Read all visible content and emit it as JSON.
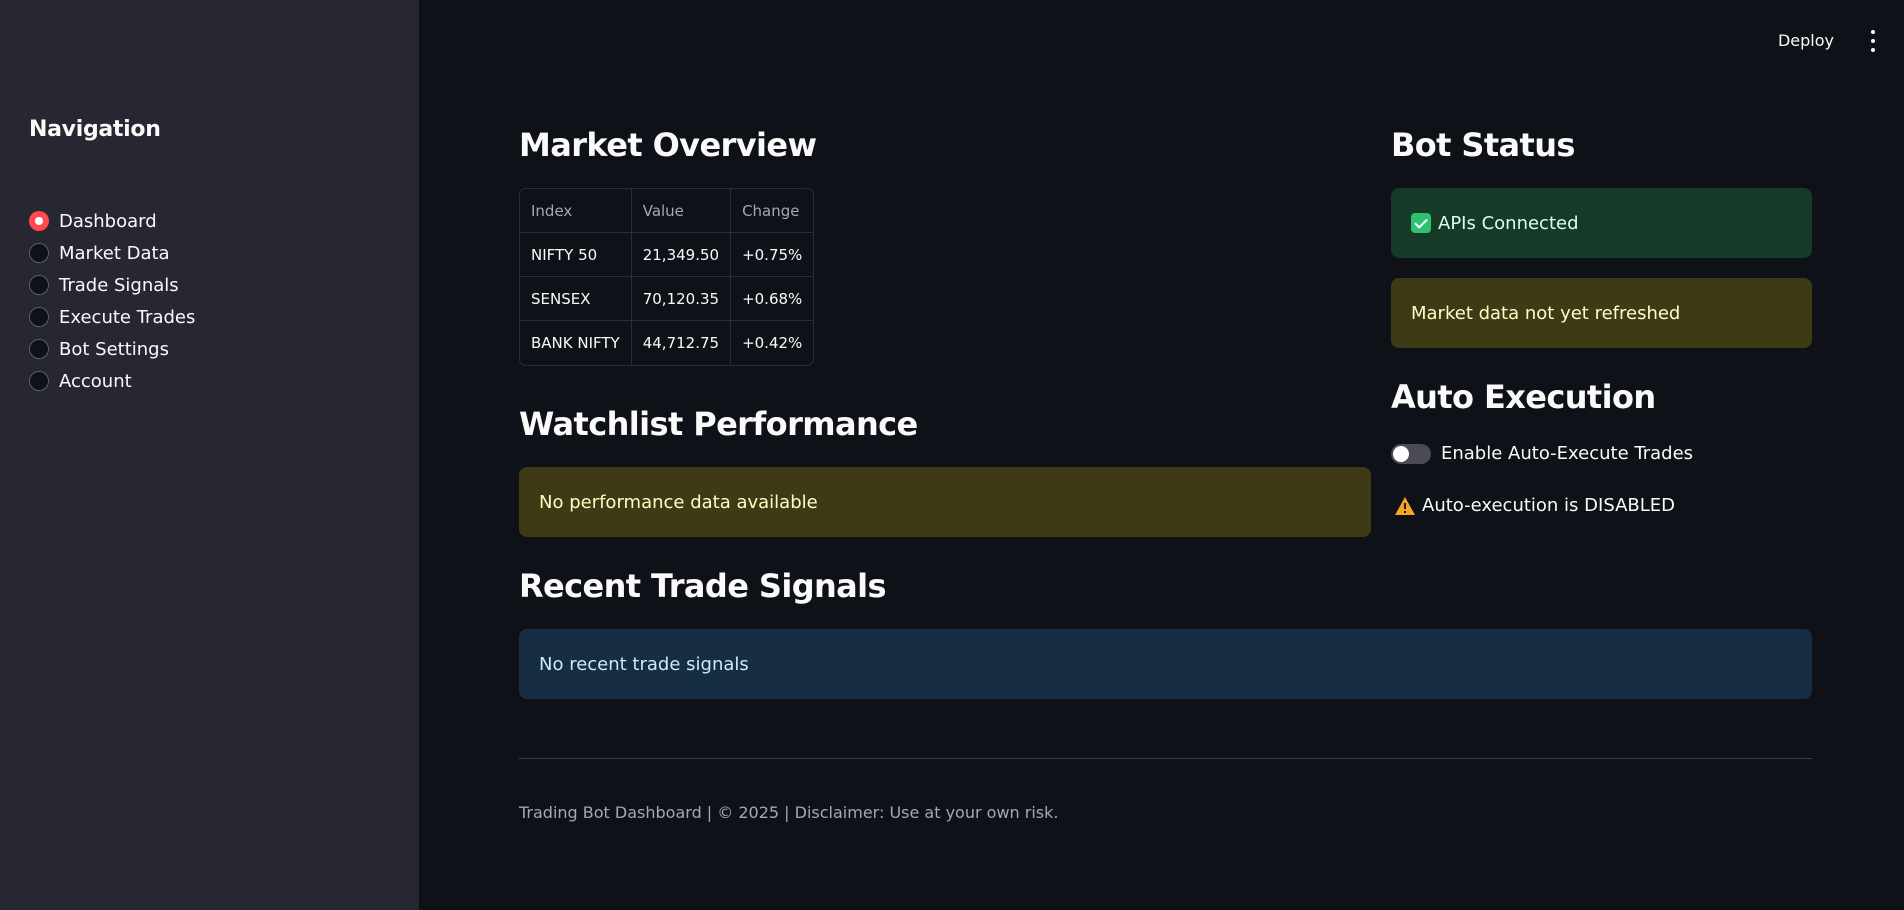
{
  "sidebar": {
    "title": "Navigation",
    "items": [
      {
        "label": "Dashboard",
        "selected": true
      },
      {
        "label": "Market Data",
        "selected": false
      },
      {
        "label": "Trade Signals",
        "selected": false
      },
      {
        "label": "Execute Trades",
        "selected": false
      },
      {
        "label": "Bot Settings",
        "selected": false
      },
      {
        "label": "Account",
        "selected": false
      }
    ]
  },
  "header": {
    "deploy_label": "Deploy",
    "menu_icon": "more-vertical-icon"
  },
  "market_overview": {
    "title": "Market Overview",
    "columns": [
      "Index",
      "Value",
      "Change"
    ],
    "rows": [
      [
        "NIFTY 50",
        "21,349.50",
        "+0.75%"
      ],
      [
        "SENSEX",
        "70,120.35",
        "+0.68%"
      ],
      [
        "BANK NIFTY",
        "44,712.75",
        "+0.42%"
      ]
    ]
  },
  "watchlist": {
    "title": "Watchlist Performance",
    "message": "No performance data available"
  },
  "signals": {
    "title": "Recent Trade Signals",
    "message": "No recent trade signals"
  },
  "bot_status": {
    "title": "Bot Status",
    "api_status": "APIs Connected",
    "market_message": "Market data not yet refreshed"
  },
  "auto_execution": {
    "title": "Auto Execution",
    "toggle_label": "Enable Auto-Execute Trades",
    "toggle_on": false,
    "status_text": "Auto-execution is DISABLED"
  },
  "footer": {
    "text": "Trading Bot Dashboard | © 2025 | Disclaimer: Use at your own risk."
  },
  "colors": {
    "background": "#0e1117",
    "sidebar": "#262730",
    "accent": "#ff4b4b",
    "warning_bg": "#3d3a15",
    "success_bg": "#173928",
    "info_bg": "#172d43"
  }
}
